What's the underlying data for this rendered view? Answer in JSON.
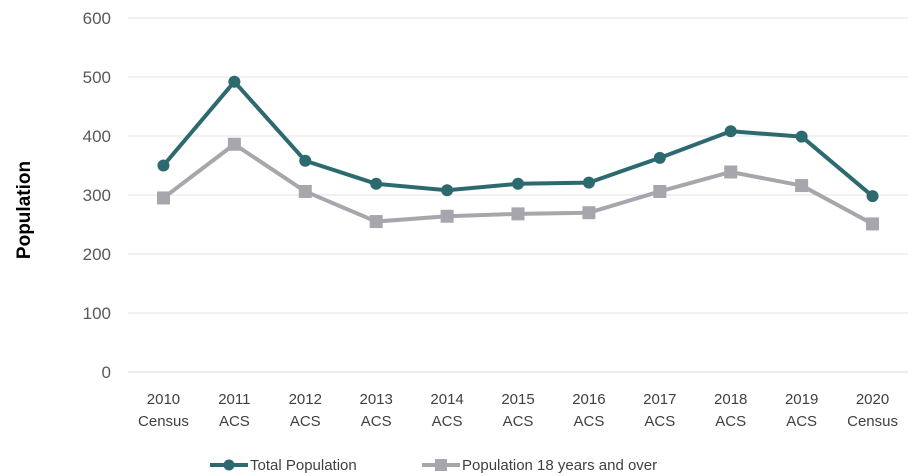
{
  "chart_data": {
    "type": "line",
    "title": "",
    "xlabel": "",
    "ylabel": "Population",
    "ylim": [
      0,
      600
    ],
    "yticks": [
      0,
      100,
      200,
      300,
      400,
      500,
      600
    ],
    "grid": true,
    "legend_position": "bottom",
    "categories": [
      [
        "2010",
        "Census"
      ],
      [
        "2011",
        "ACS"
      ],
      [
        "2012",
        "ACS"
      ],
      [
        "2013",
        "ACS"
      ],
      [
        "2014",
        "ACS"
      ],
      [
        "2015",
        "ACS"
      ],
      [
        "2016",
        "ACS"
      ],
      [
        "2017",
        "ACS"
      ],
      [
        "2018",
        "ACS"
      ],
      [
        "2019",
        "ACS"
      ],
      [
        "2020",
        "Census"
      ]
    ],
    "series": [
      {
        "name": "Total Population",
        "marker": "circle",
        "color": "#2d6a70",
        "values": [
          350,
          492,
          358,
          319,
          308,
          319,
          321,
          363,
          408,
          399,
          298
        ]
      },
      {
        "name": "Population 18 years and over",
        "marker": "square",
        "color": "#a6a6ac",
        "values": [
          295,
          386,
          306,
          255,
          264,
          268,
          270,
          306,
          339,
          316,
          251
        ]
      }
    ]
  }
}
